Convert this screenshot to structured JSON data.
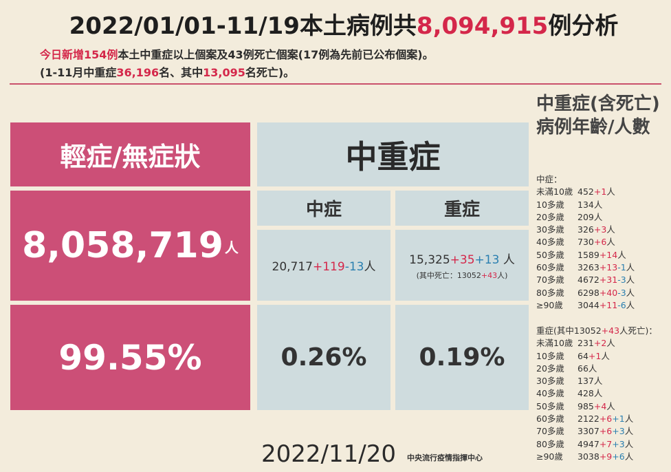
{
  "header": {
    "title_prefix": "2022/01/01-11/19本土病例共",
    "title_total": "8,094,915",
    "title_suffix": "例分析",
    "line1_new": "今日新增154例",
    "line1_rest": "本土中重症以上個案及43例死亡個案(17例為先前已公布個案)。",
    "line2_a": "(1-11月中重症",
    "line2_b": "36,196",
    "line2_c": "名、其中",
    "line2_d": "13,095",
    "line2_e": "名死亡)。"
  },
  "mild": {
    "label": "輕症/無症狀",
    "count": "8,058,719",
    "unit": "人",
    "pct": "99.55%"
  },
  "severe_group": {
    "label": "中重症",
    "moderate": {
      "label": "中症",
      "base": "20,717",
      "plus": "+119",
      "minus": "-13",
      "unit": "人",
      "pct": "0.26%"
    },
    "severe": {
      "label": "重症",
      "base": "15,325",
      "plus": "+35",
      "plus2": "+13",
      "unit": " 人",
      "note_a": "(其中死亡：13052",
      "note_b": "+43",
      "note_c": "人)",
      "pct": "0.19%"
    }
  },
  "side": {
    "title": "中重症(含死亡)病例年齡/人數",
    "moderate_header": "中症：",
    "moderate_rows": [
      {
        "age": "未滿10歲",
        "v": "452",
        "a": "+1",
        "b": "",
        "u": "人"
      },
      {
        "age": "10多歲",
        "v": "134",
        "a": "",
        "b": "",
        "u": "人"
      },
      {
        "age": "20多歲",
        "v": "209",
        "a": "",
        "b": "",
        "u": "人"
      },
      {
        "age": "30多歲",
        "v": "326",
        "a": "+3",
        "b": "",
        "u": "人"
      },
      {
        "age": "40多歲",
        "v": "730",
        "a": "+6",
        "b": "",
        "u": "人"
      },
      {
        "age": "50多歲",
        "v": "1589",
        "a": "+14",
        "b": "",
        "u": "人"
      },
      {
        "age": "60多歲",
        "v": "3263",
        "a": "+13",
        "b": "-1",
        "u": "人"
      },
      {
        "age": "70多歲",
        "v": "4672",
        "a": "+31",
        "b": "-3",
        "u": "人"
      },
      {
        "age": "80多歲",
        "v": "6298",
        "a": "+40",
        "b": "-3",
        "u": "人"
      },
      {
        "age": "≥90歲",
        "v": "3044",
        "a": "+11",
        "b": "-6",
        "u": "人"
      }
    ],
    "severe_header_a": "重症(其中13052",
    "severe_header_b": "+43",
    "severe_header_c": "人死亡)：",
    "severe_rows": [
      {
        "age": "未滿10歲",
        "v": "231",
        "a": "+2",
        "b": "",
        "u": "人"
      },
      {
        "age": "10多歲",
        "v": "64",
        "a": "+1",
        "b": "",
        "u": "人"
      },
      {
        "age": "20多歲",
        "v": "66",
        "a": "",
        "b": "",
        "u": "人"
      },
      {
        "age": "30多歲",
        "v": "137",
        "a": "",
        "b": "",
        "u": "人"
      },
      {
        "age": "40多歲",
        "v": "428",
        "a": "",
        "b": "",
        "u": "人"
      },
      {
        "age": "50多歲",
        "v": "985",
        "a": "+4",
        "b": "",
        "u": "人"
      },
      {
        "age": "60多歲",
        "v": "2122",
        "a": "+6",
        "b": "+1",
        "u": "人"
      },
      {
        "age": "70多歲",
        "v": "3307",
        "a": "+6",
        "b": "+3",
        "u": "人"
      },
      {
        "age": "80多歲",
        "v": "4947",
        "a": "+7",
        "b": "+3",
        "u": "人"
      },
      {
        "age": "≥90歲",
        "v": "3038",
        "a": "+9",
        "b": "+6",
        "u": "人"
      }
    ]
  },
  "footer": {
    "date": "2022/11/20",
    "org": "中央流行疫情指揮中心"
  }
}
